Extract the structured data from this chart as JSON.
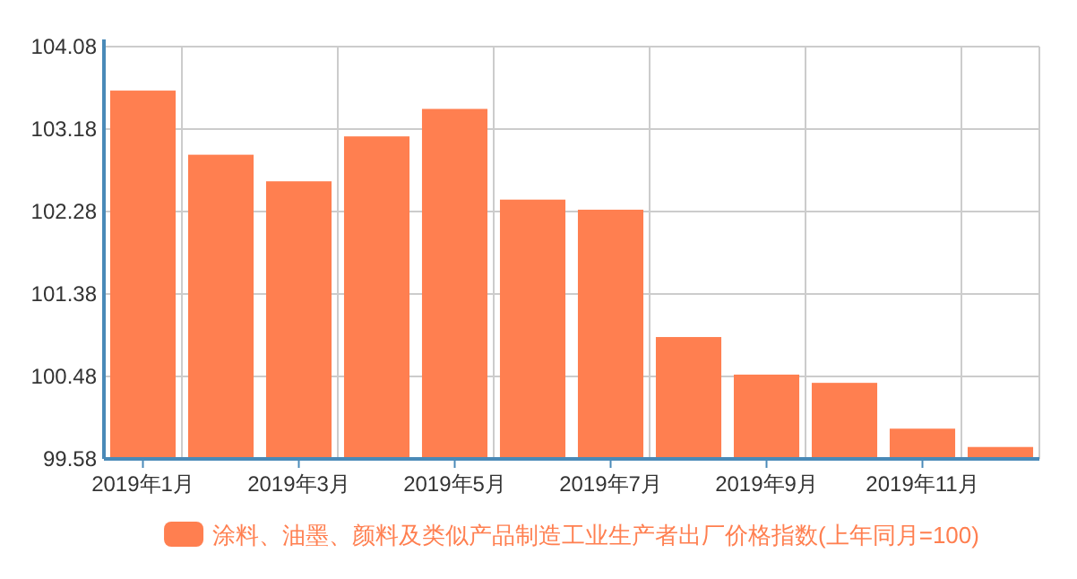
{
  "chart_data": {
    "type": "bar",
    "categories": [
      "2019年1月",
      null,
      "2019年3月",
      null,
      "2019年5月",
      null,
      "2019年7月",
      null,
      "2019年9月",
      null,
      "2019年11月",
      null
    ],
    "series": [
      {
        "name": "涂料、油墨、颜料及类似产品制造工业生产者出厂价格指数(上年同月=100)",
        "color": "#ff7f50",
        "values": [
          103.6,
          102.9,
          102.61,
          103.1,
          103.4,
          102.41,
          102.3,
          100.91,
          100.5,
          100.41,
          99.91,
          99.71
        ]
      }
    ],
    "ylim": [
      99.58,
      104.08
    ],
    "yticks": [
      99.58,
      100.48,
      101.38,
      102.28,
      103.18,
      104.08
    ],
    "grid": true,
    "legend": "bottom"
  }
}
